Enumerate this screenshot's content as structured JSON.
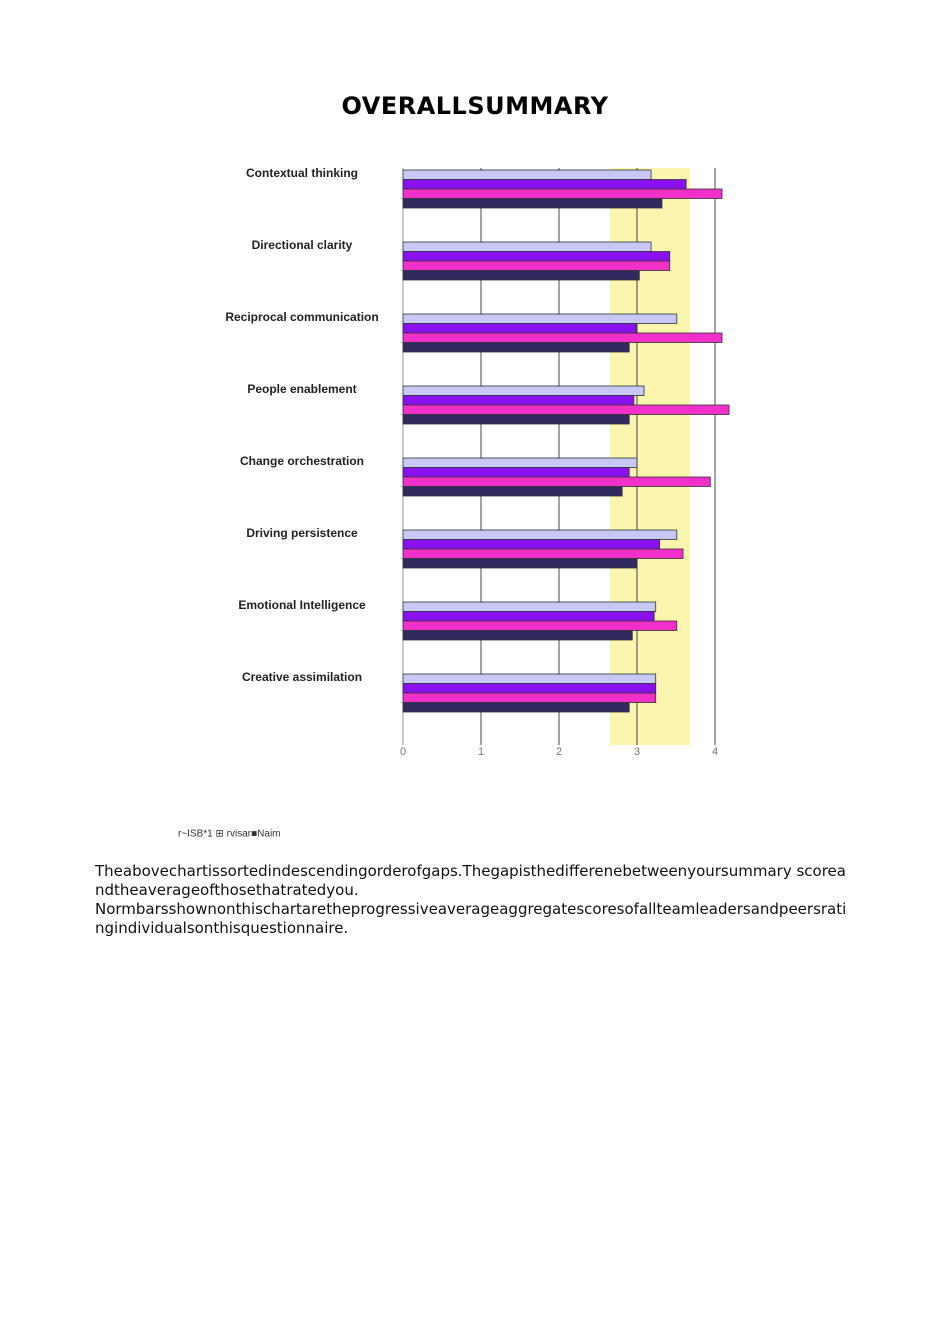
{
  "title": "OVERALLSUMMARY",
  "chart_data": {
    "type": "bar",
    "orientation": "horizontal",
    "categories": [
      "Contextual thinking",
      "Directional clarity",
      "Reciprocal communication",
      "People enablement",
      "Change orchestration",
      "Driving persistence",
      "Emotional Intelligence",
      "Creative assimilation"
    ],
    "series": [
      {
        "color": "#c8c8f4",
        "values": [
          3.18,
          3.18,
          3.51,
          3.09,
          3.0,
          3.51,
          3.24,
          3.24
        ]
      },
      {
        "color": "#8a10f0",
        "values": [
          3.63,
          3.42,
          2.99,
          2.96,
          2.9,
          3.29,
          3.22,
          3.24
        ]
      },
      {
        "color": "#f030c8",
        "values": [
          4.09,
          3.42,
          4.09,
          4.18,
          3.94,
          3.59,
          3.51,
          3.24
        ]
      },
      {
        "color": "#302a60",
        "values": [
          3.32,
          3.03,
          2.9,
          2.9,
          2.81,
          3.0,
          2.94,
          2.9
        ]
      }
    ],
    "norm_band": [
      2.65,
      3.68
    ],
    "band_color": "#fbf5b0",
    "xlim": [
      0,
      4
    ],
    "xticks": [
      0,
      1,
      2,
      3,
      4
    ],
    "grid": true,
    "legend_text": "r~ISB*1 ⊞ rvisar■Naim"
  },
  "paragraphs": [
    "Theabovechartissortedindescendingorderofgaps.Thegapisthedifferenebetweenyoursummary scoreandtheaverageofthosethatratedyou.",
    "Normbarsshownonthischartaretheprogressiveaverageaggregatescoresofallteamleadersandpeersratingindividualsonthisquestionnaire."
  ]
}
